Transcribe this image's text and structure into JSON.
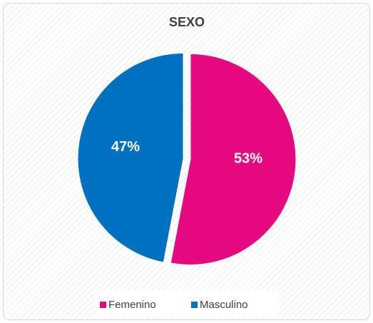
{
  "chart_data": {
    "type": "pie",
    "title": "SEXO",
    "categories": [
      "Femenino",
      "Masculino"
    ],
    "values": [
      53,
      47
    ],
    "value_labels": [
      "53%",
      "47%"
    ],
    "colors": [
      "#e5097f",
      "#0070c0"
    ],
    "legend": "bottom"
  }
}
